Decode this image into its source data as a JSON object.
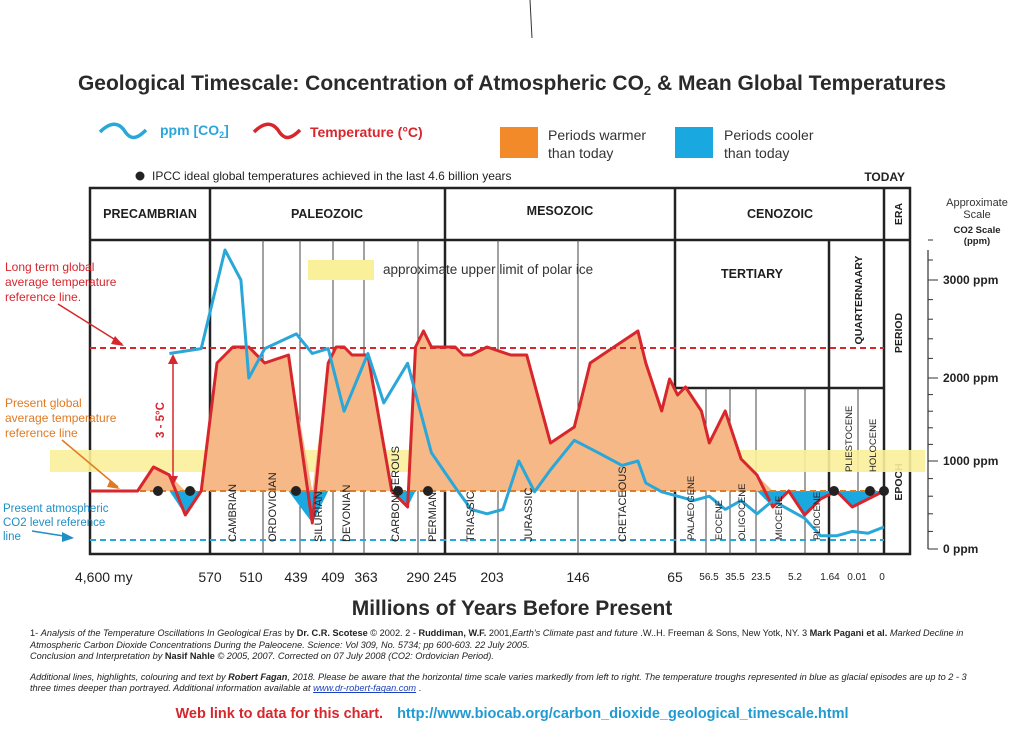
{
  "title_main": "Geological Timescale: Concentration of Atmospheric CO",
  "title_sub": "2",
  "title_rest": " & Mean Global Temperatures",
  "legend": {
    "co2_label": "ppm [CO",
    "co2_sub": "2",
    "co2_end": "]",
    "temp_label": "Temperature (°C)",
    "warmer_line1": "Periods warmer",
    "warmer_line2": "than today",
    "cooler_line1": "Periods cooler",
    "cooler_line2": "than today",
    "ipcc_note": "IPCC ideal global temperatures achieved in the last 4.6 billion years",
    "today": "TODAY"
  },
  "colors": {
    "temperature": "#d7262c",
    "co2": "#2aa7d9",
    "warm_fill": "#f5b886",
    "warm_legend": "#f28a2a",
    "cool": "#1aa8e0",
    "polar_ice": "#fbf09a",
    "present_temp_line": "#e07a22"
  },
  "eras": [
    "PRECAMBRIAN",
    "PALEOZOIC",
    "MESOZOIC",
    "CENOZOIC"
  ],
  "row_labels": {
    "era": "ERA",
    "period": "PERIOD",
    "epoch": "EPOCH"
  },
  "periods": [
    "CAMBRIAN",
    "ORDOVICIAN",
    "SILURIAN",
    "DEVONIAN",
    "CARBONIFEROUS",
    "PERMIAN",
    "TRIASSIC",
    "JURASSIC",
    "CRETACEOUS"
  ],
  "cenozoic": {
    "tertiary": "TERTIARY",
    "quaternary": "QUARTERNAARY"
  },
  "epochs": [
    "PALAEOGENE",
    "EOCENE",
    "OLIGOCENE",
    "MIOCENE",
    "PLIOCENE",
    "PLIESTOCENE",
    "HOLOCENE"
  ],
  "annotations": {
    "polar_ice": "approximate upper limit of polar ice",
    "long_term_ref": [
      "Long term global",
      "average temperature",
      "reference line."
    ],
    "present_ref": [
      "Present global",
      "average temperature",
      "reference line"
    ],
    "co2_ref": [
      "Present atmospheric",
      "CO2 level reference",
      "line"
    ],
    "delta": "3 - 5°C"
  },
  "scale": {
    "title": [
      "Approximate",
      "Scale"
    ],
    "sub": [
      "CO2 Scale",
      "(ppm)"
    ],
    "ticks": [
      {
        "v": 3000,
        "label": "3000 ppm"
      },
      {
        "v": 2000,
        "label": "2000 ppm"
      },
      {
        "v": 1000,
        "label": "1000 ppm"
      },
      {
        "v": 0,
        "label": "0 ppm"
      }
    ]
  },
  "x_ticks": [
    "4,600 my",
    "570",
    "510",
    "439",
    "409",
    "363",
    "290",
    "245",
    "203",
    "146",
    "65",
    "56.5",
    "35.5",
    "23.5",
    "5.2",
    "1.64",
    "0.01",
    "0"
  ],
  "x_title": "Millions of Years Before Present",
  "refs": {
    "p1a": "1- ",
    "p1b": "Analysis of the Temperature Oscillations In Geological Eras",
    "p1c": " by ",
    "p1d": "Dr. C.R. Scotese",
    "p1e": " © 2002. 2 - ",
    "p1f": "Ruddiman, W.F.",
    "p1g": " 2001,",
    "p1h": "Earth's Climate past and future",
    "p1i": " .W..H. Freeman & Sons, New Yotk, NY. 3 ",
    "p1j": "Mark Pagani et al.",
    "p1k": " Marked Decline in Atmospheric Carbon Dioxide Concentrations During the Paleocene. Science: Vol 309, No. 5734; pp 600-603. 22 July 2005.",
    "p1l": "Conclusion and Interpretation",
    "p1m": " by ",
    "p1n": "Nasif Nahle",
    "p1o": " © 2005, 2007. Corrected on 07 July 2008 (CO2: Ordovician Period).",
    "p2a": "Additional lines, highlights, colouring and text by ",
    "p2b": "Robert Fagan",
    "p2c": ", 2018.  Please be aware that the horizontal time scale varies markedly from left to right.  The temperature troughs represented in blue as glacial episodes are up to 2 - 3 three times deeper than portrayed. Additional information available at ",
    "p2d": "www.dr-robert-fagan.com",
    "p2e": "  ."
  },
  "weblink": {
    "label": "Web link to data for this chart.",
    "url": "http://www.biocab.org/carbon_dioxide_geological_timescale.html"
  },
  "chart_data": {
    "type": "line",
    "title": "Geological Timescale: Concentration of Atmospheric CO2 & Mean Global Temperatures",
    "xlabel": "Millions of Years Before Present",
    "ylabel": "CO2 Scale (ppm)",
    "x_axis_note": "Horizontal time scale varies markedly from left to right (non-linear)",
    "x_ticks_mya": [
      "4,600",
      "570",
      "510",
      "439",
      "409",
      "363",
      "290",
      "245",
      "203",
      "146",
      "65",
      "56.5",
      "35.5",
      "23.5",
      "5.2",
      "1.64",
      "0.01",
      "0"
    ],
    "ylim_ppm": [
      0,
      3600
    ],
    "series": [
      {
        "name": "ppm [CO2]",
        "x_axis_position": [
          0.1,
          0.14,
          0.17,
          0.19,
          0.2,
          0.22,
          0.26,
          0.28,
          0.3,
          0.32,
          0.35,
          0.37,
          0.4,
          0.43,
          0.46,
          0.48,
          0.5,
          0.52,
          0.54,
          0.56,
          0.58,
          0.61,
          0.64,
          0.67,
          0.69,
          0.7,
          0.72,
          0.74,
          0.76,
          0.78,
          0.8,
          0.82,
          0.84,
          0.86,
          0.88,
          0.9,
          0.92,
          0.94,
          0.96,
          0.98,
          1.0
        ],
        "values": [
          2250,
          2300,
          3300,
          3000,
          2000,
          2300,
          2450,
          2250,
          2300,
          1600,
          2250,
          1700,
          2150,
          1100,
          700,
          450,
          400,
          450,
          1000,
          650,
          900,
          1250,
          1100,
          950,
          1000,
          750,
          650,
          600,
          550,
          600,
          450,
          550,
          400,
          550,
          450,
          350,
          150,
          150,
          200,
          180,
          250
        ]
      },
      {
        "name": "Temperature (°C)",
        "units": "relative to present global average (qualitative)",
        "x_axis_position": [
          0.0,
          0.06,
          0.08,
          0.1,
          0.12,
          0.14,
          0.16,
          0.18,
          0.2,
          0.22,
          0.25,
          0.28,
          0.3,
          0.31,
          0.32,
          0.33,
          0.35,
          0.38,
          0.4,
          0.41,
          0.42,
          0.43,
          0.45,
          0.46,
          0.47,
          0.48,
          0.5,
          0.53,
          0.55,
          0.58,
          0.61,
          0.62,
          0.63,
          0.66,
          0.69,
          0.7,
          0.72,
          0.73,
          0.74,
          0.75,
          0.77,
          0.78,
          0.8,
          0.82,
          0.84,
          0.86,
          0.88,
          0.9,
          0.92,
          0.94,
          0.96,
          1.0
        ],
        "values": [
          0,
          0,
          1.5,
          1,
          -1.5,
          0,
          8,
          9,
          9,
          8,
          8.5,
          -2,
          8,
          9,
          9,
          8.5,
          8.5,
          0,
          -1,
          9,
          10,
          9,
          9,
          9,
          8.5,
          8.5,
          9,
          8.5,
          8.5,
          3,
          4,
          6,
          8,
          9,
          10,
          8,
          5,
          7,
          6,
          6.5,
          5,
          3,
          5,
          2,
          1,
          -1,
          0,
          -1.5,
          -0.5,
          0,
          -1,
          0
        ]
      }
    ],
    "reference_lines": [
      {
        "name": "Long term global average temperature reference line"
      },
      {
        "name": "Present global average temperature reference line"
      },
      {
        "name": "Present atmospheric CO2 level reference line"
      }
    ],
    "annotations": [
      "approximate upper limit of polar ice",
      "3 - 5°C"
    ]
  }
}
